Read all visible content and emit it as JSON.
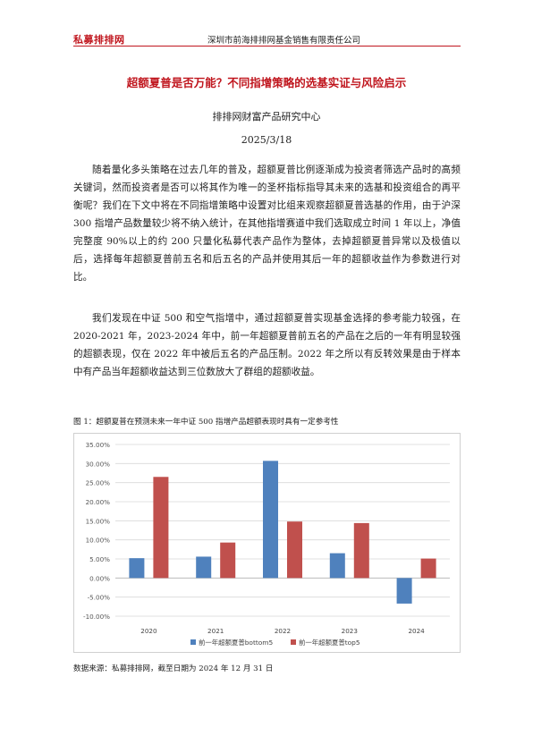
{
  "header": {
    "logo_text": "私募排排网",
    "company": "深圳市前海排排网基金销售有限责任公司"
  },
  "title": "超额夏普是否万能？不同指增策略的选基实证与风险启示",
  "subtitle": "排排网财富产品研究中心",
  "date": "2025/3/18",
  "paragraphs": [
    "随着量化多头策略在过去几年的普及，超额夏普比例逐渐成为投资者筛选产品时的高频关键词，然而投资者是否可以将其作为唯一的圣杯指标指导其未来的选基和投资组合的再平衡呢？我们在下文中将在不同指增策略中设置对比组来观察超额夏普选基的作用，由于沪深 300 指增产品数量较少将不纳入统计，在其他指增赛道中我们选取成立时间 1 年以上，净值完整度 90%以上的约 200 只量化私募代表产品作为整体，去掉超额夏普异常以及极值以后，选择每年超额夏普前五名和后五名的产品并使用其后一年的超额收益作为参数进行对比。",
    "我们发现在中证 500 和空气指增中，通过超额夏普实现基金选择的参考能力较强，在 2020-2021 年，2023-2024 年中，前一年超额夏普前五名的产品在之后的一年有明显较强的超额表现，仅在 2022 年中被后五名的产品压制。2022 年之所以有反转效果是由于样本中有产品当年超额收益达到三位数放大了群组的超额收益。"
  ],
  "figure": {
    "caption": "图 1：超额夏普在预测未来一年中证 500 指增产品超额表现时具有一定参考性",
    "source": "数据来源：私募排排网，截至日期为 2024 年 12 月 31 日"
  },
  "colors": {
    "brand_red": "#c0161e",
    "series_bottom": "#4f81bd",
    "series_top": "#c0504d"
  },
  "chart_data": {
    "type": "bar",
    "title": "",
    "xlabel": "",
    "ylabel": "",
    "categories": [
      "2020",
      "2021",
      "2022",
      "2023",
      "2024"
    ],
    "series": [
      {
        "name": "前一年超额夏普bottom5",
        "values": [
          0.052,
          0.056,
          0.307,
          0.065,
          -0.067
        ]
      },
      {
        "name": "前一年超额夏普top5",
        "values": [
          0.265,
          0.093,
          0.148,
          0.144,
          0.051
        ]
      }
    ],
    "ylim": [
      -0.1,
      0.35
    ],
    "yticks": [
      "35.00%",
      "30.00%",
      "25.00%",
      "20.00%",
      "15.00%",
      "10.00%",
      "5.00%",
      "0.00%",
      "-5.00%",
      "-10.00%"
    ],
    "ytick_values": [
      0.35,
      0.3,
      0.25,
      0.2,
      0.15,
      0.1,
      0.05,
      0.0,
      -0.05,
      -0.1
    ],
    "grid": true,
    "legend_position": "bottom"
  }
}
